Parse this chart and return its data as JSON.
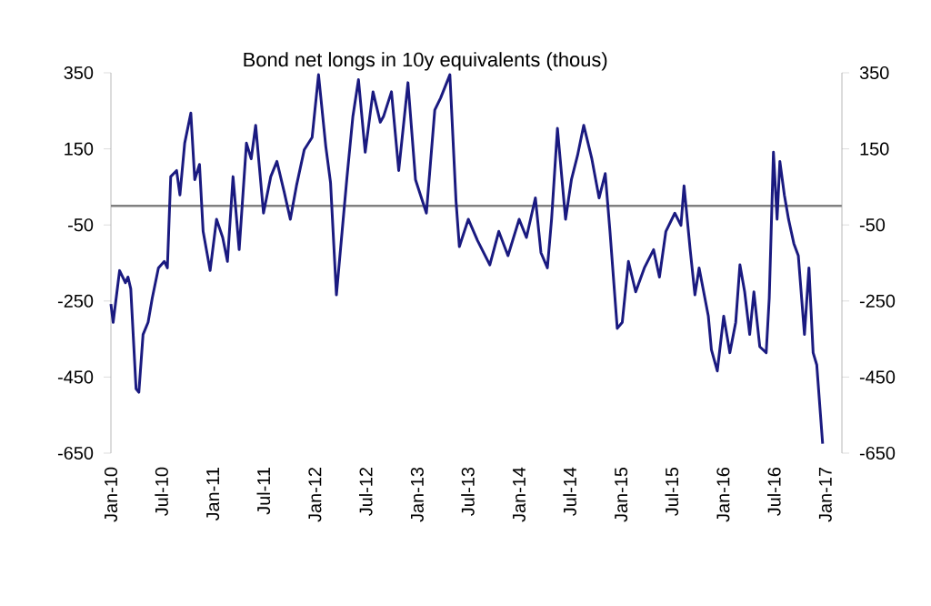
{
  "chart_data": {
    "type": "line",
    "title": "Bond net longs in 10y equivalents (thous)",
    "x": [
      "2010-01-01",
      "2010-01-09",
      "2010-02-01",
      "2010-02-22",
      "2010-03-03",
      "2010-03-13",
      "2010-04-01",
      "2010-04-11",
      "2010-04-26",
      "2010-05-14",
      "2010-05-29",
      "2010-06-20",
      "2010-07-11",
      "2010-07-22",
      "2010-08-03",
      "2010-08-24",
      "2010-09-05",
      "2010-09-22",
      "2010-10-14",
      "2010-10-28",
      "2010-11-14",
      "2010-11-27",
      "2010-12-22",
      "2011-01-14",
      "2011-02-05",
      "2011-02-22",
      "2011-03-14",
      "2011-04-05",
      "2011-05-01",
      "2011-05-18",
      "2011-06-03",
      "2011-07-01",
      "2011-07-27",
      "2011-08-18",
      "2011-09-13",
      "2011-10-05",
      "2011-10-27",
      "2011-11-24",
      "2011-12-22",
      "2012-01-14",
      "2012-02-09",
      "2012-02-26",
      "2012-03-18",
      "2012-04-24",
      "2012-05-16",
      "2012-06-05",
      "2012-06-29",
      "2012-07-27",
      "2012-08-22",
      "2012-09-03",
      "2012-10-01",
      "2012-10-27",
      "2012-11-29",
      "2012-12-26",
      "2013-02-03",
      "2013-03-05",
      "2013-03-26",
      "2013-04-28",
      "2013-05-20",
      "2013-06-01",
      "2013-07-03",
      "2013-08-05",
      "2013-09-18",
      "2013-10-20",
      "2013-11-22",
      "2014-01-01",
      "2014-01-27",
      "2014-02-28",
      "2014-03-20",
      "2014-04-12",
      "2014-04-27",
      "2014-05-18",
      "2014-06-16",
      "2014-07-07",
      "2014-07-29",
      "2014-08-20",
      "2014-09-18",
      "2014-10-14",
      "2014-11-05",
      "2014-11-22",
      "2014-12-18",
      "2015-01-05",
      "2015-01-27",
      "2015-02-22",
      "2015-03-25",
      "2015-04-27",
      "2015-05-18",
      "2015-06-10",
      "2015-07-12",
      "2015-08-03",
      "2015-08-14",
      "2015-09-05",
      "2015-09-22",
      "2015-10-07",
      "2015-11-09",
      "2015-11-20",
      "2015-12-11",
      "2016-01-03",
      "2016-01-25",
      "2016-02-15",
      "2016-03-01",
      "2016-03-18",
      "2016-04-05",
      "2016-04-20",
      "2016-05-11",
      "2016-06-03",
      "2016-06-14",
      "2016-06-29",
      "2016-07-12",
      "2016-07-22",
      "2016-08-07",
      "2016-08-22",
      "2016-09-10",
      "2016-09-26",
      "2016-10-18",
      "2016-11-03",
      "2016-11-18",
      "2016-12-01",
      "2016-12-22"
    ],
    "series": [
      {
        "color": "#1a1a80",
        "values": [
          -258,
          -306,
          -170,
          -202,
          -187,
          -218,
          -481,
          -490,
          -338,
          -306,
          -242,
          -163,
          -146,
          -163,
          77,
          93,
          29,
          165,
          244,
          69,
          109,
          -67,
          -170,
          -35,
          -83,
          -146,
          77,
          -115,
          165,
          124,
          212,
          -19,
          77,
          117,
          37,
          -35,
          53,
          148,
          180,
          345,
          156,
          61,
          -234,
          69,
          236,
          332,
          141,
          300,
          220,
          236,
          300,
          93,
          324,
          69,
          -19,
          252,
          284,
          345,
          13,
          -107,
          -35,
          -91,
          -155,
          -67,
          -131,
          -35,
          -83,
          21,
          -123,
          -163,
          -35,
          204,
          -35,
          69,
          133,
          212,
          124,
          21,
          85,
          -67,
          -322,
          -306,
          -146,
          -226,
          -163,
          -115,
          -187,
          -67,
          -19,
          -51,
          53,
          -115,
          -234,
          -163,
          -290,
          -378,
          -434,
          -290,
          -386,
          -306,
          -155,
          -226,
          -338,
          -226,
          -370,
          -386,
          -242,
          141,
          -35,
          117,
          29,
          -35,
          -99,
          -131,
          -338,
          -163,
          -386,
          -418,
          -625
        ]
      }
    ],
    "xlim": [
      "2010-01-01",
      "2017-03-01"
    ],
    "xticks": [
      {
        "value": "2010-01-01",
        "label": "Jan-10"
      },
      {
        "value": "2010-07-01",
        "label": "Jul-10"
      },
      {
        "value": "2011-01-01",
        "label": "Jan-11"
      },
      {
        "value": "2011-07-01",
        "label": "Jul-11"
      },
      {
        "value": "2012-01-01",
        "label": "Jan-12"
      },
      {
        "value": "2012-07-01",
        "label": "Jul-12"
      },
      {
        "value": "2013-01-01",
        "label": "Jan-13"
      },
      {
        "value": "2013-07-01",
        "label": "Jul-13"
      },
      {
        "value": "2014-01-01",
        "label": "Jan-14"
      },
      {
        "value": "2014-07-01",
        "label": "Jul-14"
      },
      {
        "value": "2015-01-01",
        "label": "Jan-15"
      },
      {
        "value": "2015-07-01",
        "label": "Jul-15"
      },
      {
        "value": "2016-01-01",
        "label": "Jan-16"
      },
      {
        "value": "2016-07-01",
        "label": "Jul-16"
      },
      {
        "value": "2017-01-01",
        "label": "Jan-17"
      }
    ],
    "ylim": [
      -650,
      350
    ],
    "yticks": [
      -650,
      -450,
      -250,
      -50,
      150,
      350
    ],
    "y2lim": [
      -650,
      350
    ],
    "y2ticks": [
      -650,
      -450,
      -250,
      -50,
      150,
      350
    ],
    "ref_lines": [
      {
        "axis": "y",
        "value": 0,
        "color": "#808080"
      }
    ],
    "marker": "none",
    "line_style": "solid"
  }
}
